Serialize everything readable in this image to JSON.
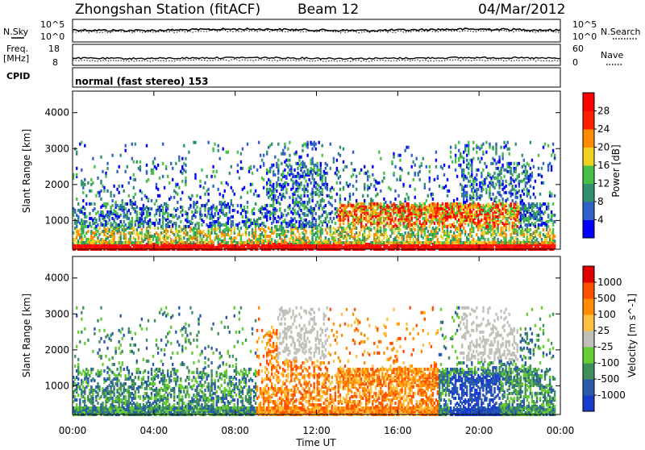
{
  "header": {
    "station": "Zhongshan Station (fitACF)",
    "beam": "Beam 12",
    "date": "04/Mar/2012"
  },
  "panels": {
    "nsky": {
      "left_label": "N.Sky",
      "right_label": "N.Search",
      "left_ticks": [
        "10^5",
        "10^0"
      ],
      "right_ticks": [
        "10^5",
        "10^0"
      ]
    },
    "freq": {
      "left_label_1": "Freq.",
      "left_label_2": "[MHz]",
      "left_ticks": [
        "18",
        "8"
      ],
      "right_label": "Nave",
      "right_ticks": [
        "60",
        "0"
      ]
    },
    "cpid": {
      "label": "CPID",
      "text": "normal (fast stereo) 153"
    }
  },
  "chart_data": [
    {
      "type": "heatmap",
      "name": "power",
      "ylabel": "Slant Range [km]",
      "xlabel": "",
      "x_range_hours": [
        0,
        24
      ],
      "ylim": [
        200,
        4600
      ],
      "yticks": [
        "1000",
        "2000",
        "3000",
        "4000"
      ],
      "colorbar": {
        "label": "Power [dB]",
        "ticks": [
          "4",
          "8",
          "12",
          "16",
          "20",
          "24",
          "28"
        ],
        "colors": [
          "#0000ff",
          "#3060c8",
          "#2f8f6e",
          "#46c048",
          "#f0d020",
          "#ff8c00",
          "#ff2000",
          "#ff0000"
        ]
      }
    },
    {
      "type": "heatmap",
      "name": "velocity",
      "ylabel": "Slant Range [km]",
      "xlabel": "Time UT",
      "x_range_hours": [
        0,
        24
      ],
      "ylim": [
        200,
        4600
      ],
      "yticks": [
        "1000",
        "2000",
        "3000",
        "4000"
      ],
      "xticks": [
        "00:00",
        "04:00",
        "08:00",
        "12:00",
        "16:00",
        "20:00",
        "00:00"
      ],
      "colorbar": {
        "label": "Velocity [m s^-1]",
        "ticks": [
          "1000",
          "500",
          "100",
          "25",
          "-25",
          "-100",
          "-500",
          "-1000"
        ],
        "colors": [
          "#1a3ccc",
          "#2a5aaa",
          "#3e8f5a",
          "#66cc33",
          "#c0c0b8",
          "#ffc040",
          "#ff8c00",
          "#ff5000",
          "#e00000"
        ]
      }
    }
  ]
}
